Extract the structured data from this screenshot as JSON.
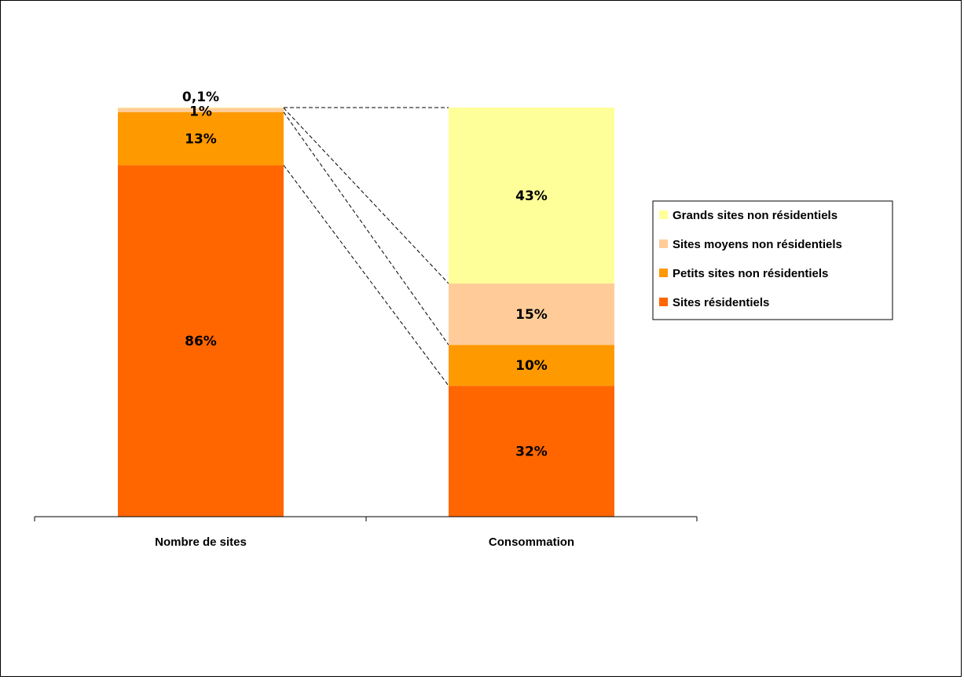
{
  "chart_data": {
    "type": "bar",
    "stacked": true,
    "percent": true,
    "categories": [
      "Nombre de sites",
      "Consommation"
    ],
    "series": [
      {
        "name": "Sites résidentiels",
        "color": "#ff6600",
        "values": [
          86,
          32
        ],
        "labels": [
          "86%",
          "32%"
        ]
      },
      {
        "name": "Petits sites non résidentiels",
        "color": "#ff9900",
        "values": [
          13,
          10
        ],
        "labels": [
          "13%",
          "10%"
        ]
      },
      {
        "name": "Sites moyens non résidentiels",
        "color": "#ffcc99",
        "values": [
          1,
          15
        ],
        "labels": [
          "1%",
          "15%"
        ]
      },
      {
        "name": "Grands sites non résidentiels",
        "color": "#ffff99",
        "values": [
          0.1,
          43
        ],
        "labels": [
          "0,1%",
          "43%"
        ]
      }
    ],
    "ylim": [
      0,
      100
    ],
    "legend_position": "right",
    "connector_lines": true
  }
}
